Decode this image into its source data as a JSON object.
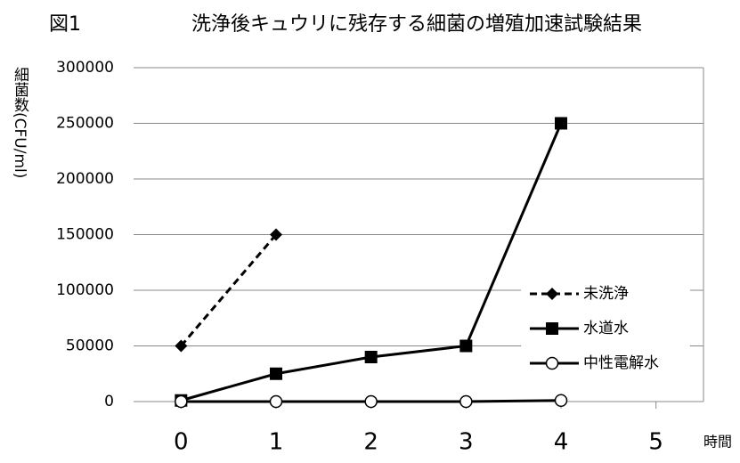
{
  "chart_data": {
    "type": "line",
    "figure_label": "図1",
    "title": "洗浄後キュウリに残存する細菌の増殖加速試験結果",
    "y_label": "細菌数(CFU/ml)",
    "x_label": "時間",
    "x": [
      0,
      1,
      2,
      3,
      4
    ],
    "xlim": [
      -0.5,
      5.5
    ],
    "xticks": [
      0,
      1,
      2,
      3,
      4,
      5
    ],
    "ylim": [
      0,
      300000
    ],
    "yticks": [
      0,
      50000,
      100000,
      150000,
      200000,
      250000,
      300000
    ],
    "grid": true,
    "legend": "right",
    "series": [
      {
        "name": "未洗浄",
        "color": "#000000",
        "linestyle": "dashed",
        "marker": "diamond",
        "values": [
          50000,
          150000,
          null,
          null,
          null
        ]
      },
      {
        "name": "水道水",
        "color": "#000000",
        "linestyle": "solid",
        "marker": "square",
        "values": [
          1000,
          25000,
          40000,
          50000,
          250000
        ]
      },
      {
        "name": "中性電解水",
        "color": "#000000",
        "linestyle": "solid",
        "marker": "circle",
        "values": [
          0,
          0,
          0,
          0,
          1000
        ]
      }
    ]
  }
}
